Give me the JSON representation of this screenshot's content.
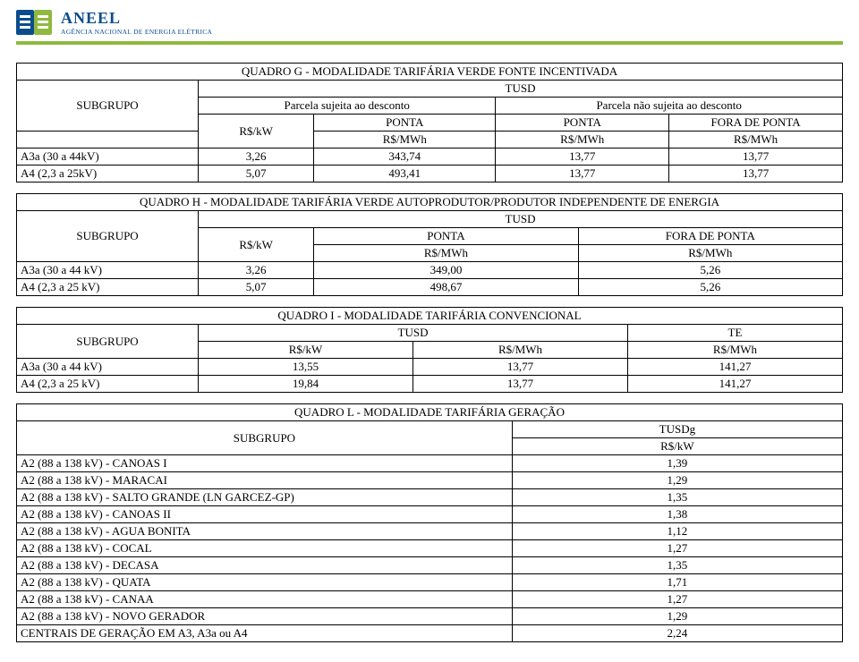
{
  "logo": {
    "name": "ANEEL",
    "subtitle": "AGÊNCIA NACIONAL DE ENERGIA ELÉTRICA",
    "blue": "#0a4d8c",
    "green": "#8fb93f"
  },
  "tableG": {
    "title": "QUADRO G - MODALIDADE TARIFÁRIA VERDE FONTE INCENTIVADA",
    "tusd": "TUSD",
    "subgrupo": "SUBGRUPO",
    "parcela_com": "Parcela sujeita ao desconto",
    "parcela_sem": "Parcela não sujeita ao desconto",
    "rskw": "R$/kW",
    "ponta": "PONTA",
    "fora": "FORA DE PONTA",
    "rsmwh": "R$/MWh",
    "rows": [
      {
        "label": "A3a (30 a 44kV)",
        "c1": "3,26",
        "c2": "343,74",
        "c3": "13,77",
        "c4": "13,77"
      },
      {
        "label": "A4 (2,3 a 25kV)",
        "c1": "5,07",
        "c2": "493,41",
        "c3": "13,77",
        "c4": "13,77"
      }
    ]
  },
  "tableH": {
    "title": "QUADRO H - MODALIDADE TARIFÁRIA VERDE AUTOPRODUTOR/PRODUTOR INDEPENDENTE DE ENERGIA",
    "tusd": "TUSD",
    "subgrupo": "SUBGRUPO",
    "rskw": "R$/kW",
    "ponta": "PONTA",
    "fora": "FORA DE PONTA",
    "rsmwh": "R$/MWh",
    "rows": [
      {
        "label": "A3a (30 a 44 kV)",
        "c1": "3,26",
        "c2": "349,00",
        "c3": "5,26"
      },
      {
        "label": "A4 (2,3 a 25 kV)",
        "c1": "5,07",
        "c2": "498,67",
        "c3": "5,26"
      }
    ]
  },
  "tableI": {
    "title": "QUADRO I - MODALIDADE TARIFÁRIA CONVENCIONAL",
    "subgrupo": "SUBGRUPO",
    "tusd": "TUSD",
    "te": "TE",
    "rskw": "R$/kW",
    "rsmwh": "R$/MWh",
    "rows": [
      {
        "label": "A3a (30 a 44 kV)",
        "c1": "13,55",
        "c2": "13,77",
        "c3": "141,27"
      },
      {
        "label": "A4 (2,3 a 25 kV)",
        "c1": "19,84",
        "c2": "13,77",
        "c3": "141,27"
      }
    ]
  },
  "tableL": {
    "title": "QUADRO L - MODALIDADE TARIFÁRIA GERAÇÃO",
    "subgrupo": "SUBGRUPO",
    "tusdg": "TUSDg",
    "rskw": "R$/kW",
    "rows": [
      {
        "label": "A2 (88 a 138 kV) - CANOAS I",
        "v": "1,39"
      },
      {
        "label": "A2 (88 a 138 kV) - MARACAI",
        "v": "1,29"
      },
      {
        "label": "A2 (88 a 138 kV) - SALTO GRANDE (LN GARCEZ-GP)",
        "v": "1,35"
      },
      {
        "label": "A2 (88 a 138 kV) - CANOAS II",
        "v": "1,38"
      },
      {
        "label": "A2 (88 a 138 kV) - AGUA BONITA",
        "v": "1,12"
      },
      {
        "label": "A2 (88 a 138 kV) - COCAL",
        "v": "1,27"
      },
      {
        "label": "A2 (88 a 138 kV) - DECASA",
        "v": "1,35"
      },
      {
        "label": "A2 (88 a 138 kV) - QUATA",
        "v": "1,71"
      },
      {
        "label": "A2 (88 a 138 kV) - CANAA",
        "v": "1,27"
      },
      {
        "label": "A2 (88 a 138 kV) - NOVO GERADOR",
        "v": "1,29"
      },
      {
        "label": "CENTRAIS DE GERAÇÃO EM A3, A3a ou A4",
        "v": "2,24"
      }
    ]
  }
}
